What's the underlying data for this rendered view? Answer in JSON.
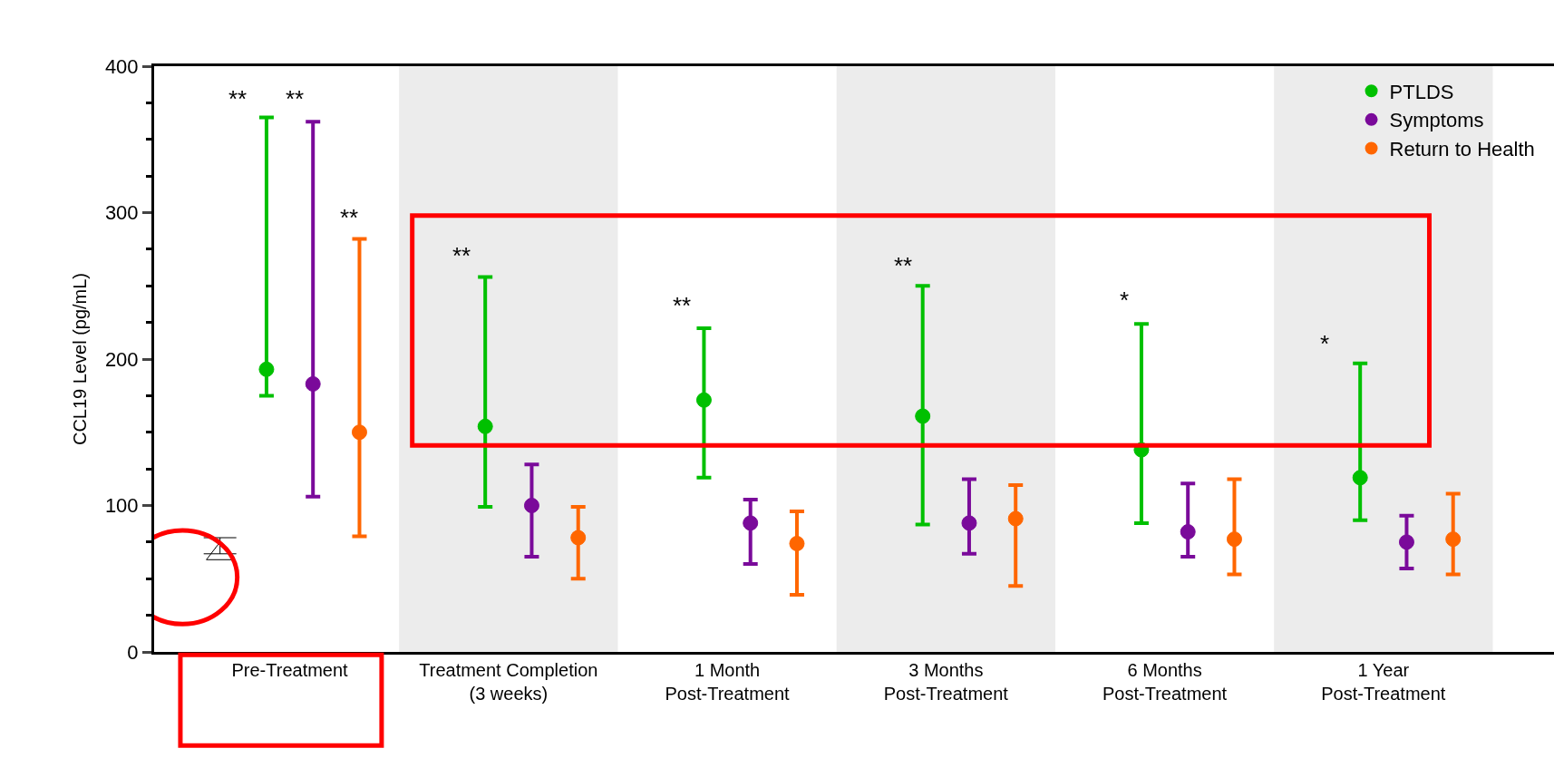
{
  "chart_data": {
    "type": "scatter",
    "ylabel": "CCL19 Level (pg/mL)",
    "categories": [
      "Pre-Treatment",
      "Treatment Completion\n(3 weeks)",
      "1 Month\nPost-Treatment",
      "3 Months\nPost-Treatment",
      "6 Months\nPost-Treatment",
      "1 Year\nPost-Treatment"
    ],
    "series": [
      {
        "color": "#000000",
        "marker": "triangle",
        "values": [
          67,
          null,
          null,
          null,
          null,
          null
        ],
        "errors": [
          [
            67,
            78
          ],
          null,
          null,
          null,
          null,
          null
        ]
      },
      {
        "name": "PTLDS",
        "color": "#00c000",
        "values": [
          193,
          154,
          172,
          161,
          138,
          119
        ],
        "errors": [
          [
            175,
            365
          ],
          [
            99,
            256
          ],
          [
            119,
            221
          ],
          [
            87,
            250
          ],
          [
            88,
            224
          ],
          [
            90,
            197
          ]
        ]
      },
      {
        "name": "Symptoms",
        "color": "#7a0a9a",
        "values": [
          183,
          100,
          88,
          88,
          82,
          75
        ],
        "errors": [
          [
            106,
            362
          ],
          [
            65,
            128
          ],
          [
            60,
            104
          ],
          [
            67,
            118
          ],
          [
            65,
            115
          ],
          [
            57,
            93
          ]
        ]
      },
      {
        "name": "Return to Health",
        "color": "#ff6600",
        "values": [
          150,
          78,
          74,
          91,
          77,
          77
        ],
        "errors": [
          [
            79,
            282
          ],
          [
            50,
            99
          ],
          [
            39,
            96
          ],
          [
            45,
            114
          ],
          [
            53,
            118
          ],
          [
            53,
            108
          ]
        ]
      }
    ],
    "annotations": [
      "**",
      "**",
      "**",
      "**",
      "**",
      "**",
      "*",
      "*"
    ],
    "ylim": [
      0,
      400
    ],
    "yticks": [
      0,
      100,
      200,
      300,
      400
    ],
    "bands": [
      {
        "axis": "x",
        "from": "Treatment Completion\n(3 weeks)",
        "to": "Treatment Completion\n(3 weeks)",
        "color": "#ececec"
      },
      {
        "axis": "x",
        "from": "3 Months\nPost-Treatment",
        "to": "3 Months\nPost-Treatment",
        "color": "#ececec"
      },
      {
        "axis": "x",
        "from": "1 Year\nPost-Treatment",
        "to": "1 Year\nPost-Treatment",
        "color": "#ececec"
      }
    ],
    "marker": "circle",
    "legend": "top right",
    "grid": false
  }
}
